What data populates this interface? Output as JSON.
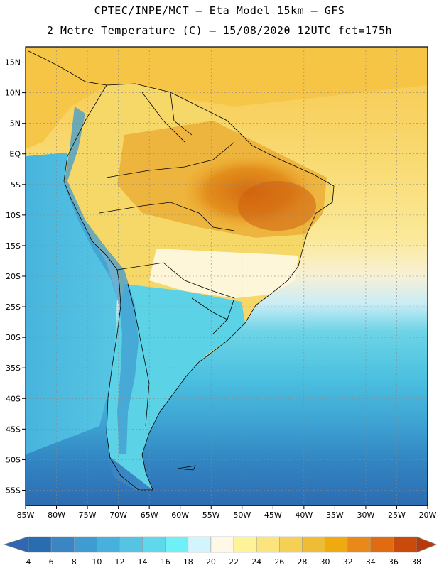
{
  "title": {
    "line1": "CPTEC/INPE/MCT –  Eta Model 15km – GFS",
    "line2": "2 Metre Temperature (C) – 15/08/2020 12UTC fct=175h"
  },
  "map": {
    "lat_labels": [
      "15N",
      "10N",
      "5N",
      "EQ",
      "5S",
      "10S",
      "15S",
      "20S",
      "25S",
      "30S",
      "35S",
      "40S",
      "45S",
      "50S",
      "55S"
    ],
    "lon_labels": [
      "85W",
      "80W",
      "75W",
      "70W",
      "65W",
      "60W",
      "55W",
      "50W",
      "45W",
      "40W",
      "35W",
      "30W",
      "25W",
      "20W"
    ],
    "lon_range": [
      -85,
      -20
    ],
    "lat_range": [
      -57.5,
      17.5
    ]
  },
  "colorbar": {
    "ticks": [
      "4",
      "6",
      "8",
      "10",
      "12",
      "14",
      "16",
      "18",
      "20",
      "22",
      "24",
      "26",
      "28",
      "30",
      "32",
      "34",
      "36",
      "38"
    ],
    "colors": [
      "#2a6cb0",
      "#3a86c4",
      "#3f9cd2",
      "#47b0dc",
      "#55c4e2",
      "#5ed8ea",
      "#6ef0f6",
      "#d2f4fc",
      "#fff8e6",
      "#fff39a",
      "#fbe47c",
      "#f6d055",
      "#efbd35",
      "#eeaa0e",
      "#e8891a",
      "#e16b10",
      "#c94a0a"
    ],
    "low_color": "#2f67b0",
    "high_color": "#b83a0a"
  }
}
